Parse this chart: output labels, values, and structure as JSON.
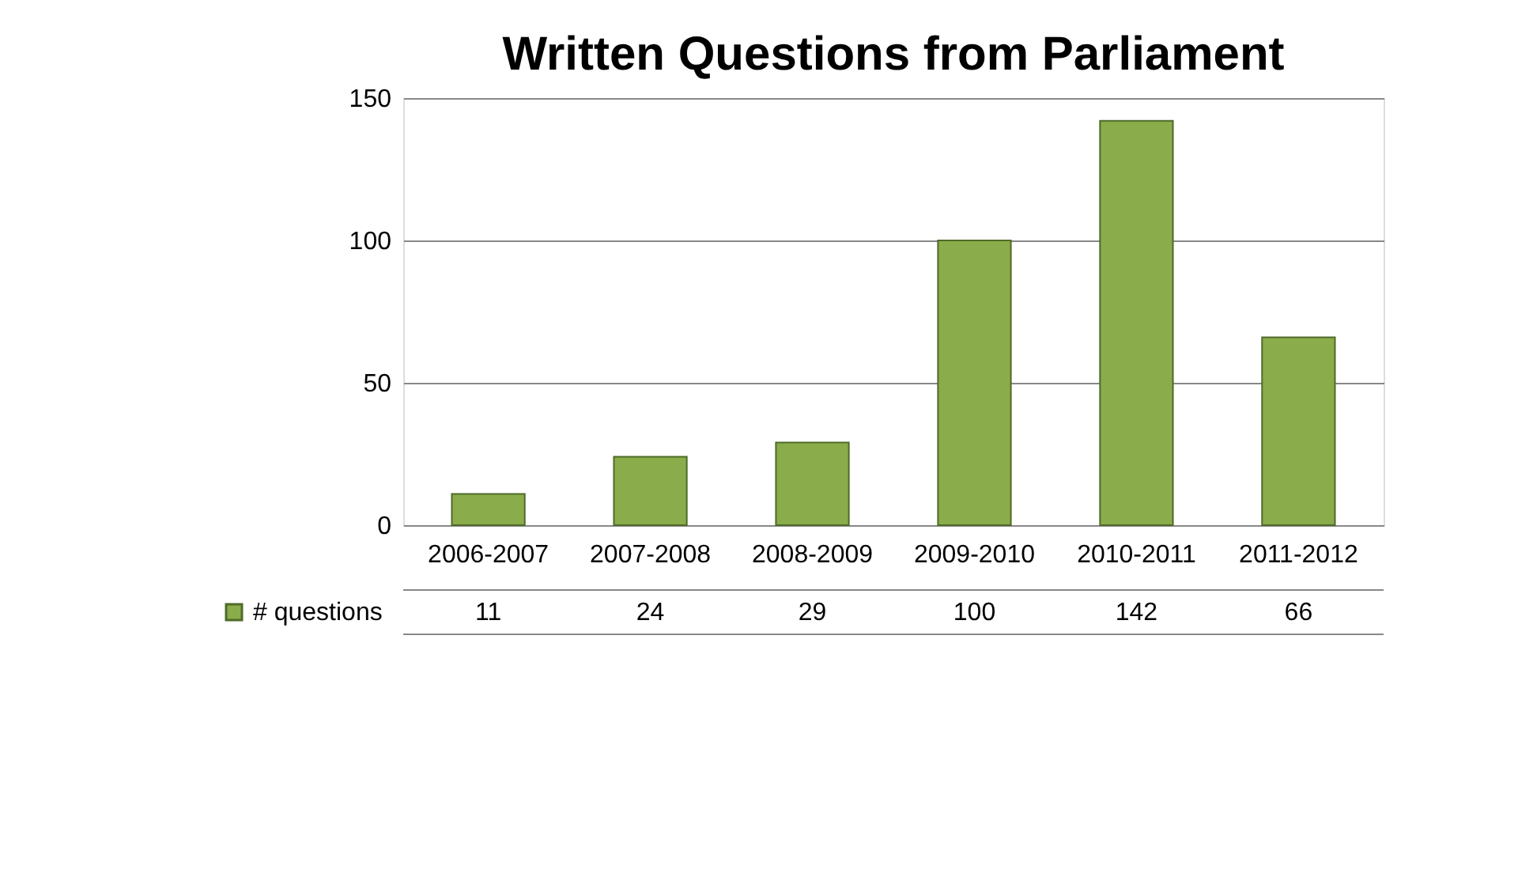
{
  "chart_data": {
    "type": "bar",
    "title": "Written Questions from Parliament",
    "categories": [
      "2006-2007",
      "2007-2008",
      "2008-2009",
      "2009-2010",
      "2010-2011",
      "2011-2012"
    ],
    "series": [
      {
        "name": "# questions",
        "color": "#8aac4a",
        "values": [
          11,
          24,
          29,
          100,
          142,
          66
        ]
      }
    ],
    "ylim": [
      0,
      150
    ],
    "yticks": [
      0,
      50,
      100,
      150
    ],
    "grid": "y",
    "legend": "bottom",
    "data_labels": true
  }
}
